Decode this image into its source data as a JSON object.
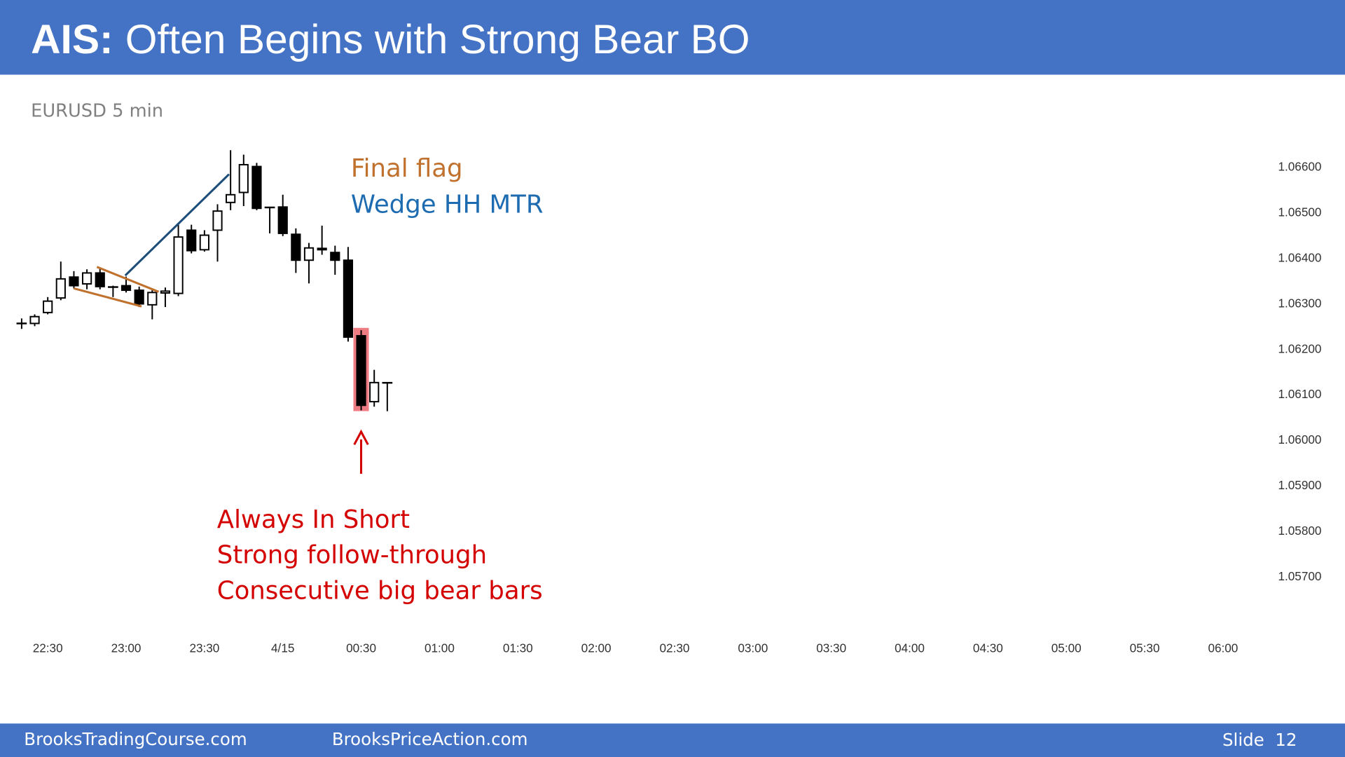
{
  "title_lead": "AIS:",
  "title": "Often Begins with Strong Bear BO",
  "footer": {
    "left": "BrooksTradingCourse.com",
    "middle": "BrooksPriceAction.com",
    "slide": "Slide  12"
  },
  "chart_data": {
    "type": "candlestick",
    "subtitle": "EURUSD 5 min",
    "x": [
      "22:20",
      "22:25",
      "22:30",
      "22:35",
      "22:40",
      "22:45",
      "22:50",
      "22:55",
      "23:00",
      "23:05",
      "23:10",
      "23:15",
      "23:20",
      "23:25",
      "23:30",
      "23:35",
      "23:40",
      "23:45",
      "23:50",
      "23:55",
      "00:00",
      "00:05",
      "00:10",
      "00:15",
      "00:20",
      "00:25",
      "00:30",
      "00:35",
      "00:40"
    ],
    "open": [
      1.06255,
      1.06255,
      1.06279,
      1.06311,
      1.06357,
      1.06342,
      1.06366,
      1.06336,
      1.06338,
      1.06328,
      1.06296,
      1.06322,
      1.06321,
      1.0646,
      1.06417,
      1.0646,
      1.06521,
      1.06543,
      1.066,
      1.06511,
      1.06511,
      1.06451,
      1.06394,
      1.0642,
      1.06411,
      1.06394,
      1.06228,
      1.06083,
      1.06125
    ],
    "high": [
      1.06266,
      1.06275,
      1.06313,
      1.06391,
      1.0637,
      1.06374,
      1.06377,
      1.06338,
      1.06358,
      1.06336,
      1.06332,
      1.06334,
      1.06472,
      1.06472,
      1.0646,
      1.06517,
      1.06636,
      1.06626,
      1.06608,
      1.06511,
      1.06538,
      1.06464,
      1.06432,
      1.0647,
      1.06426,
      1.06423,
      1.0624,
      1.06153,
      1.06125
    ],
    "low": [
      1.06243,
      1.06249,
      1.06275,
      1.06306,
      1.06332,
      1.0633,
      1.0633,
      1.06313,
      1.06323,
      1.06291,
      1.06264,
      1.06291,
      1.06315,
      1.06409,
      1.06413,
      1.06391,
      1.06504,
      1.06513,
      1.06504,
      1.06453,
      1.06447,
      1.06366,
      1.06343,
      1.06406,
      1.06362,
      1.06215,
      1.06064,
      1.06072,
      1.06062
    ],
    "close": [
      1.06255,
      1.0627,
      1.06304,
      1.06353,
      1.06338,
      1.06366,
      1.06336,
      1.06334,
      1.06328,
      1.06298,
      1.06323,
      1.06326,
      1.06445,
      1.06415,
      1.06449,
      1.06502,
      1.06538,
      1.06604,
      1.06508,
      1.06509,
      1.06453,
      1.06394,
      1.06421,
      1.06417,
      1.06394,
      1.06225,
      1.06075,
      1.06125,
      1.06124
    ],
    "xlim": [
      "22:15",
      "06:15"
    ],
    "xticks": [
      {
        "value": "22:30",
        "label": "22:30"
      },
      {
        "value": "23:00",
        "label": "23:00"
      },
      {
        "value": "23:30",
        "label": "23:30"
      },
      {
        "value": "00:00",
        "label": "4/15"
      },
      {
        "value": "00:30",
        "label": "00:30"
      },
      {
        "value": "01:00",
        "label": "01:00"
      },
      {
        "value": "01:30",
        "label": "01:30"
      },
      {
        "value": "02:00",
        "label": "02:00"
      },
      {
        "value": "02:30",
        "label": "02:30"
      },
      {
        "value": "03:00",
        "label": "03:00"
      },
      {
        "value": "03:30",
        "label": "03:30"
      },
      {
        "value": "04:00",
        "label": "04:00"
      },
      {
        "value": "04:30",
        "label": "04:30"
      },
      {
        "value": "05:00",
        "label": "05:00"
      },
      {
        "value": "05:30",
        "label": "05:30"
      },
      {
        "value": "06:00",
        "label": "06:00"
      }
    ],
    "ylim": [
      1.0565,
      1.0665
    ],
    "yticks": [
      {
        "value": 1.066,
        "label": "1.06600"
      },
      {
        "value": 1.065,
        "label": "1.06500"
      },
      {
        "value": 1.064,
        "label": "1.06400"
      },
      {
        "value": 1.063,
        "label": "1.06300"
      },
      {
        "value": 1.062,
        "label": "1.06200"
      },
      {
        "value": 1.061,
        "label": "1.06100"
      },
      {
        "value": 1.06,
        "label": "1.06000"
      },
      {
        "value": 1.059,
        "label": "1.05900"
      },
      {
        "value": 1.058,
        "label": "1.05800"
      },
      {
        "value": 1.057,
        "label": "1.05700"
      }
    ],
    "up_color": "#ffffff",
    "down_color": "#000000",
    "annotations": [
      {
        "text": "Final flag",
        "color": "#c0712e"
      },
      {
        "text": "Wedge HH MTR",
        "color": "#1d6bb0"
      },
      {
        "text": "Always In Short",
        "color": "#d40000"
      },
      {
        "text": "Strong follow-through",
        "color": "#d40000"
      },
      {
        "text": "Consecutive big bear bars",
        "color": "#d40000"
      }
    ]
  }
}
